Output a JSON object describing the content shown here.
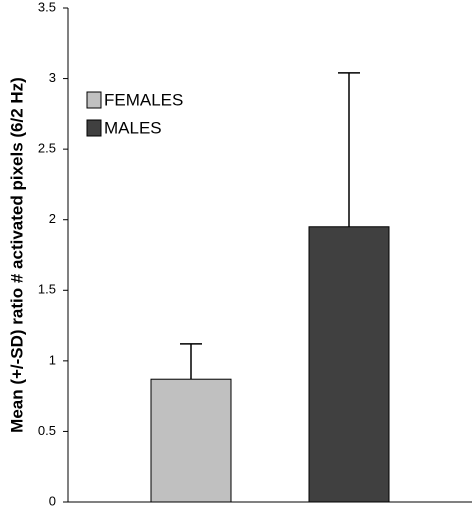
{
  "chart_data": {
    "type": "bar",
    "y_label": "Mean (+/-SD) ratio # activated pixels (6/2 Hz)",
    "categories": [
      null
    ],
    "series": [
      {
        "name": "FEMALES",
        "color": "#c0c0c0",
        "values": [
          0.87
        ],
        "errors": [
          0.25
        ]
      },
      {
        "name": "MALES",
        "color": "#404040",
        "values": [
          1.95
        ],
        "errors": [
          1.09
        ]
      }
    ],
    "ylim": [
      0,
      3.5
    ],
    "yticks": [
      0,
      0.5,
      1,
      1.5,
      2,
      2.5,
      3,
      3.5
    ],
    "legend": "upper-left"
  }
}
